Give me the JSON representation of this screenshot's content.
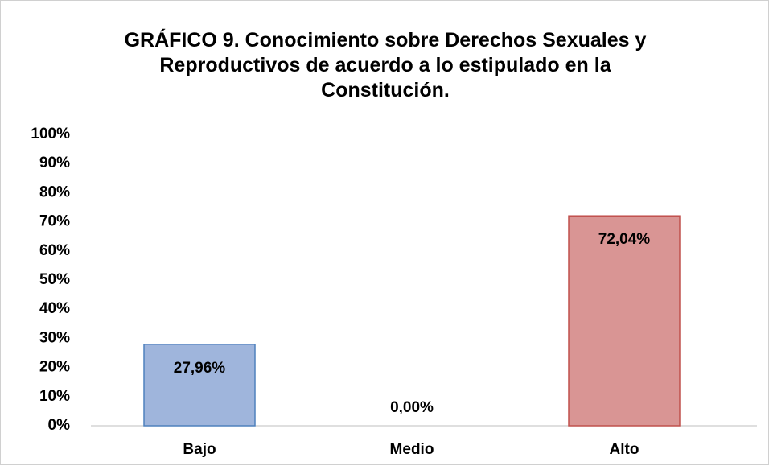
{
  "chart_data": {
    "type": "bar",
    "title": "GRÁFICO 9.  Conocimiento sobre Derechos Sexuales y Reproductivos de acuerdo a lo estipulado en la Constitución.",
    "categories": [
      "Bajo",
      "Medio",
      "Alto"
    ],
    "values": [
      27.96,
      0,
      72.04
    ],
    "value_labels": [
      "27,96%",
      "0,00%",
      "72,04%"
    ],
    "colors": [
      "#9fb5dc",
      "#c4c4c4",
      "#d99594"
    ],
    "ylim": [
      0,
      100
    ],
    "yticks": [
      {
        "value": 0,
        "label": "0%"
      },
      {
        "value": 10,
        "label": "10%"
      },
      {
        "value": 20,
        "label": "20%"
      },
      {
        "value": 30,
        "label": "30%"
      },
      {
        "value": 40,
        "label": "40%"
      },
      {
        "value": 50,
        "label": "50%"
      },
      {
        "value": 60,
        "label": "60%"
      },
      {
        "value": 70,
        "label": "70%"
      },
      {
        "value": 80,
        "label": "80%"
      },
      {
        "value": 90,
        "label": "90%"
      },
      {
        "value": 100,
        "label": "100%"
      }
    ],
    "grid": false
  }
}
